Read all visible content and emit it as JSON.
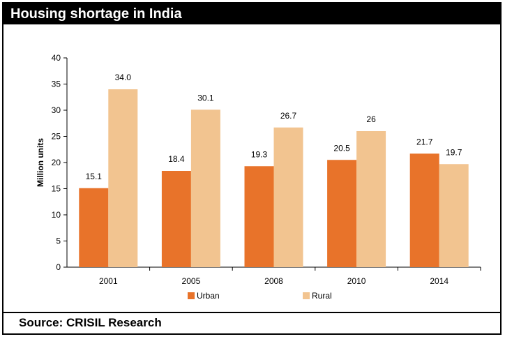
{
  "header": {
    "title": "Housing shortage in India"
  },
  "footer": {
    "source": "Source: CRISIL Research"
  },
  "chart_data": {
    "type": "bar",
    "title": "Housing shortage in India",
    "xlabel": "",
    "ylabel": "Million units",
    "categories": [
      "2001",
      "2005",
      "2008",
      "2010",
      "2014"
    ],
    "series": [
      {
        "name": "Urban",
        "values": [
          15.1,
          18.4,
          19.3,
          20.5,
          21.7
        ],
        "labels": [
          "15.1",
          "18.4",
          "19.3",
          "20.5",
          "21.7"
        ],
        "color": "#E8732A"
      },
      {
        "name": "Rural",
        "values": [
          34.0,
          30.1,
          26.7,
          26,
          19.7
        ],
        "labels": [
          "34.0",
          "30.1",
          "26.7",
          "26",
          "19.7"
        ],
        "color": "#F2C490"
      }
    ],
    "ylim": [
      0,
      40
    ],
    "yticks": [
      0,
      5,
      10,
      15,
      20,
      25,
      30,
      35,
      40
    ],
    "grid": false,
    "legend_position": "bottom-center"
  }
}
